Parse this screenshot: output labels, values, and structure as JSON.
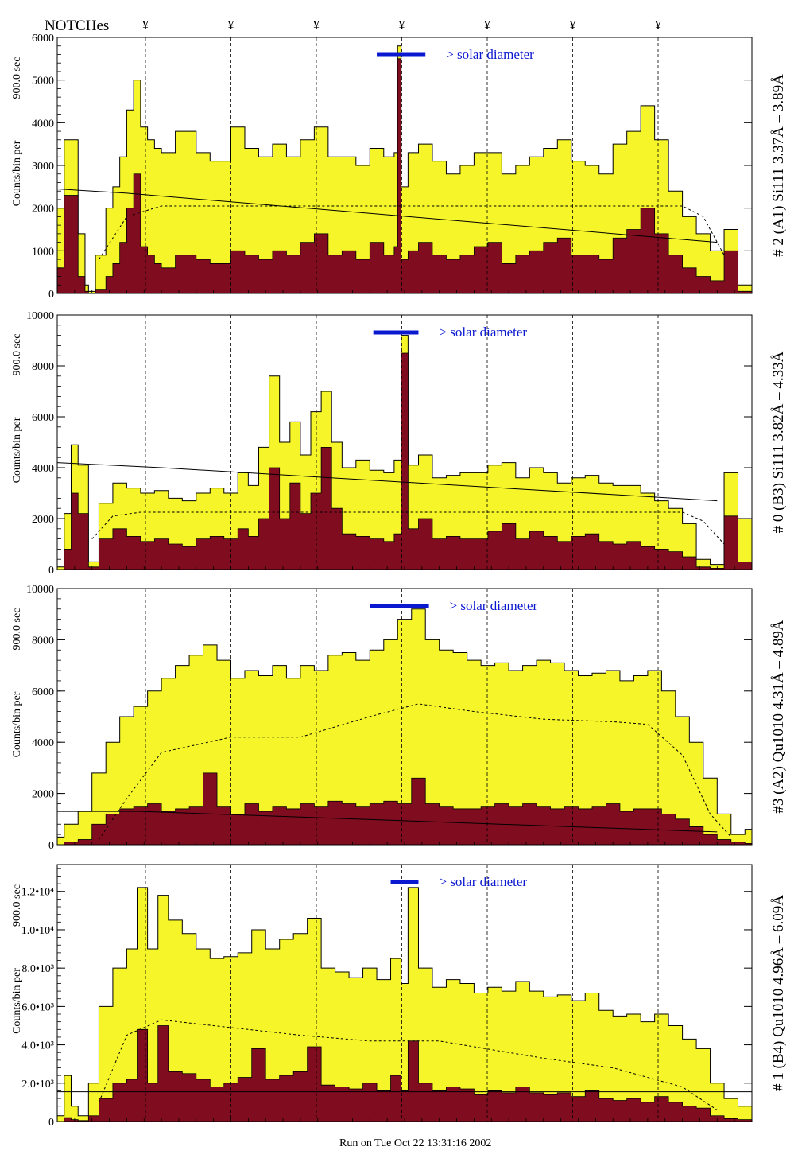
{
  "header": {
    "notches_label": "NOTCHes",
    "notch_marker": "¥",
    "notch_positions": [
      1.27,
      2.5,
      3.73,
      4.96,
      6.19,
      7.42,
      8.65
    ]
  },
  "footer": {
    "run_label": "Run on Tue Oct 22 13:31:16 2002"
  },
  "colors": {
    "fill_total": "#f5f52a",
    "fill_sub": "#800c20",
    "solar_bar": "#0a18d0",
    "solar_text": "#0a18d0",
    "axis": "#000000"
  },
  "chart_data": [
    {
      "type": "area",
      "title": "# 2 (A1) Si111  3.37Å – 3.89Å",
      "ylabel": "Counts/bin per",
      "ylabel2": "900.0 sec",
      "solar_label": "> solar diameter",
      "ylim": [
        0,
        6000
      ],
      "yticks": [
        0,
        1000,
        2000,
        3000,
        4000,
        5000,
        6000
      ],
      "ytick_labels": [
        "0",
        "1000",
        "2000",
        "3000",
        "4000",
        "5000",
        "6000"
      ],
      "xlim": [
        0,
        10
      ],
      "x": [
        0,
        0.1,
        0.3,
        0.4,
        0.45,
        0.55,
        0.7,
        0.8,
        0.9,
        1.0,
        1.1,
        1.2,
        1.3,
        1.4,
        1.5,
        1.7,
        2.0,
        2.2,
        2.5,
        2.7,
        2.9,
        3.1,
        3.3,
        3.5,
        3.7,
        3.9,
        4.1,
        4.3,
        4.5,
        4.7,
        4.85,
        4.9,
        4.95,
        5.05,
        5.2,
        5.4,
        5.6,
        5.8,
        6.0,
        6.2,
        6.4,
        6.6,
        6.8,
        7.0,
        7.2,
        7.4,
        7.6,
        7.8,
        8.0,
        8.2,
        8.4,
        8.6,
        8.8,
        9.0,
        9.2,
        9.4,
        9.6,
        9.8,
        10
      ],
      "total": [
        2000,
        3600,
        1400,
        200,
        50,
        900,
        2000,
        2500,
        3200,
        4300,
        5000,
        3900,
        3600,
        3400,
        3300,
        3800,
        3300,
        3100,
        3900,
        3400,
        3200,
        3500,
        3200,
        3600,
        3900,
        3200,
        3200,
        3000,
        3400,
        3200,
        3300,
        5800,
        2500,
        3300,
        3500,
        3100,
        2800,
        3000,
        3300,
        3300,
        2800,
        3000,
        3200,
        3400,
        3600,
        3100,
        3000,
        2800,
        3500,
        3800,
        4400,
        3600,
        2400,
        1800,
        1400,
        1000,
        1500,
        200,
        0
      ],
      "sub": [
        600,
        2300,
        400,
        50,
        0,
        100,
        400,
        700,
        1200,
        2000,
        2800,
        1100,
        900,
        700,
        600,
        900,
        800,
        700,
        1000,
        900,
        800,
        1000,
        900,
        1200,
        1400,
        900,
        1000,
        800,
        1200,
        900,
        1100,
        5500,
        800,
        1000,
        1200,
        900,
        800,
        900,
        1100,
        1200,
        700,
        900,
        1000,
        1200,
        1300,
        900,
        900,
        800,
        1300,
        1500,
        2000,
        1400,
        900,
        600,
        400,
        300,
        1000,
        50,
        0
      ],
      "mean_curve": [
        [
          0.6,
          800
        ],
        [
          1.0,
          1800
        ],
        [
          1.5,
          2050
        ],
        [
          9.0,
          2050
        ],
        [
          9.3,
          1800
        ],
        [
          9.6,
          900
        ]
      ],
      "line_fit": [
        [
          0,
          2450
        ],
        [
          1.0,
          2350
        ],
        [
          9.5,
          1200
        ]
      ],
      "solar_bar": [
        4.6,
        5.3
      ]
    },
    {
      "type": "area",
      "title": "# 0 (B3) Si111  3.82Å – 4.33Å",
      "ylabel": "Counts/bin per",
      "ylabel2": "900.0 sec",
      "solar_label": "> solar diameter",
      "ylim": [
        0,
        10000
      ],
      "yticks": [
        0,
        2000,
        4000,
        6000,
        8000,
        10000
      ],
      "ytick_labels": [
        "0",
        "2000",
        "4000",
        "6000",
        "8000",
        "10000"
      ],
      "xlim": [
        0,
        10
      ],
      "x": [
        0,
        0.1,
        0.2,
        0.3,
        0.45,
        0.6,
        0.8,
        1.0,
        1.2,
        1.4,
        1.6,
        1.8,
        2.0,
        2.2,
        2.4,
        2.6,
        2.75,
        2.9,
        3.05,
        3.2,
        3.35,
        3.5,
        3.65,
        3.8,
        3.95,
        4.1,
        4.3,
        4.5,
        4.7,
        4.85,
        4.95,
        5.05,
        5.2,
        5.4,
        5.6,
        5.8,
        6.0,
        6.2,
        6.4,
        6.6,
        6.8,
        7.0,
        7.2,
        7.4,
        7.6,
        7.8,
        8.0,
        8.2,
        8.4,
        8.6,
        8.8,
        9.0,
        9.2,
        9.4,
        9.6,
        9.8,
        10
      ],
      "total": [
        100,
        2200,
        4900,
        4100,
        300,
        2600,
        3400,
        3200,
        3000,
        3100,
        2800,
        2700,
        3000,
        3200,
        3000,
        3800,
        3300,
        4800,
        7600,
        5000,
        5800,
        4500,
        6200,
        7000,
        5000,
        4000,
        4300,
        3900,
        3800,
        4300,
        9200,
        4100,
        4500,
        3600,
        3700,
        3800,
        3800,
        4100,
        4200,
        3600,
        4000,
        3800,
        3400,
        3600,
        3700,
        3400,
        3300,
        3300,
        3000,
        2700,
        2400,
        1800,
        400,
        200,
        3800,
        2000,
        0
      ],
      "sub": [
        0,
        800,
        3000,
        2200,
        100,
        1200,
        1600,
        1300,
        1100,
        1200,
        1000,
        900,
        1200,
        1300,
        1200,
        1600,
        1300,
        2000,
        4000,
        2000,
        3400,
        2200,
        3000,
        4800,
        2400,
        1400,
        1300,
        1200,
        1100,
        1400,
        8500,
        1600,
        2000,
        1200,
        1300,
        1200,
        1200,
        1500,
        1800,
        1200,
        1500,
        1300,
        1100,
        1300,
        1400,
        1100,
        1000,
        1100,
        900,
        800,
        700,
        500,
        100,
        50,
        2100,
        300,
        0
      ],
      "mean_curve": [
        [
          0.5,
          1200
        ],
        [
          0.8,
          2100
        ],
        [
          1.2,
          2250
        ],
        [
          9.0,
          2250
        ],
        [
          9.3,
          1900
        ],
        [
          9.6,
          1000
        ]
      ],
      "line_fit": [
        [
          0,
          4200
        ],
        [
          1.5,
          4000
        ],
        [
          9.5,
          2700
        ]
      ],
      "solar_bar": [
        4.55,
        5.2
      ]
    },
    {
      "type": "area",
      "title": "#3 (A2) Qu1010  4.31Å – 4.89Å",
      "ylabel": "Counts/bin per",
      "ylabel2": "900.0 sec",
      "solar_label": "> solar diameter",
      "ylim": [
        0,
        10000
      ],
      "yticks": [
        0,
        2000,
        4000,
        6000,
        8000,
        10000
      ],
      "ytick_labels": [
        "0",
        "2000",
        "4000",
        "6000",
        "8000",
        "10000"
      ],
      "xlim": [
        0,
        10
      ],
      "x": [
        0,
        0.1,
        0.3,
        0.5,
        0.7,
        0.9,
        1.1,
        1.3,
        1.5,
        1.7,
        1.9,
        2.1,
        2.3,
        2.5,
        2.7,
        2.9,
        3.1,
        3.3,
        3.5,
        3.7,
        3.9,
        4.1,
        4.3,
        4.5,
        4.7,
        4.9,
        5.1,
        5.3,
        5.5,
        5.7,
        5.9,
        6.1,
        6.3,
        6.5,
        6.7,
        6.9,
        7.1,
        7.3,
        7.5,
        7.7,
        7.9,
        8.1,
        8.3,
        8.5,
        8.7,
        8.9,
        9.1,
        9.3,
        9.5,
        9.7,
        9.9,
        10
      ],
      "total": [
        300,
        800,
        1300,
        2800,
        4000,
        5000,
        5400,
        6000,
        6500,
        7000,
        7400,
        7800,
        7200,
        6500,
        6800,
        6600,
        7000,
        6500,
        7000,
        6800,
        7400,
        7500,
        7200,
        7600,
        8000,
        8800,
        9200,
        8000,
        7600,
        7500,
        7200,
        7000,
        7100,
        6800,
        7000,
        7200,
        7100,
        6800,
        6600,
        6700,
        6800,
        6400,
        6600,
        6800,
        6000,
        5000,
        4000,
        2600,
        1200,
        400,
        600,
        0
      ],
      "sub": [
        0,
        100,
        200,
        800,
        1200,
        1400,
        1500,
        1600,
        1300,
        1400,
        1500,
        2800,
        1500,
        1200,
        1600,
        1300,
        1500,
        1400,
        1600,
        1500,
        1700,
        1600,
        1500,
        1600,
        1700,
        1600,
        2600,
        1600,
        1500,
        1400,
        1400,
        1500,
        1600,
        1500,
        1600,
        1500,
        1400,
        1500,
        1400,
        1500,
        1600,
        1300,
        1400,
        1400,
        1200,
        1000,
        700,
        400,
        200,
        100,
        50,
        0
      ],
      "mean_curve": [
        [
          0.6,
          200
        ],
        [
          1.0,
          1800
        ],
        [
          1.5,
          3600
        ],
        [
          2.5,
          4200
        ],
        [
          3.5,
          4200
        ],
        [
          4.5,
          5000
        ],
        [
          5.2,
          5500
        ],
        [
          6.0,
          5200
        ],
        [
          7.0,
          4900
        ],
        [
          8.0,
          4800
        ],
        [
          8.5,
          4700
        ],
        [
          9.0,
          3500
        ],
        [
          9.4,
          1200
        ],
        [
          9.7,
          300
        ]
      ],
      "line_fit": [
        [
          0,
          1300
        ],
        [
          1.2,
          1300
        ],
        [
          9.5,
          500
        ]
      ],
      "solar_bar": [
        4.5,
        5.35
      ]
    },
    {
      "type": "area",
      "title": "# 1 (B4) Qu1010 4.96Å – 6.09Å",
      "ylabel": "Counts/bin per",
      "ylabel2": "900.0 sec",
      "solar_label": "> solar diameter",
      "ylim": [
        0,
        13400
      ],
      "yticks": [
        0,
        2000,
        4000,
        6000,
        8000,
        10000,
        12000
      ],
      "ytick_labels": [
        "0",
        "2.0•10³",
        "4.0•10³",
        "6.0•10³",
        "8.0•10³",
        "1.0•10⁴",
        "1.2•10⁴"
      ],
      "xlim": [
        0,
        10
      ],
      "x": [
        0,
        0.1,
        0.2,
        0.3,
        0.45,
        0.6,
        0.8,
        1.0,
        1.15,
        1.3,
        1.45,
        1.6,
        1.8,
        2.0,
        2.2,
        2.4,
        2.6,
        2.8,
        3.0,
        3.2,
        3.4,
        3.6,
        3.8,
        4.0,
        4.2,
        4.4,
        4.6,
        4.8,
        4.95,
        5.05,
        5.2,
        5.4,
        5.6,
        5.8,
        6.0,
        6.2,
        6.4,
        6.6,
        6.8,
        7.0,
        7.2,
        7.4,
        7.6,
        7.8,
        8.0,
        8.2,
        8.4,
        8.6,
        8.8,
        9.0,
        9.2,
        9.4,
        9.6,
        9.8,
        10
      ],
      "total": [
        300,
        2400,
        800,
        300,
        2000,
        6000,
        8000,
        9000,
        12200,
        9000,
        11800,
        10500,
        9800,
        9000,
        8500,
        8600,
        8800,
        10000,
        9000,
        9500,
        9800,
        10600,
        8000,
        7800,
        7500,
        8000,
        7400,
        8500,
        7200,
        12200,
        8000,
        7000,
        7400,
        7200,
        6700,
        7000,
        6800,
        7300,
        6800,
        6500,
        6600,
        6300,
        6700,
        5800,
        5500,
        5600,
        5200,
        5600,
        5000,
        4300,
        3800,
        2000,
        1200,
        800,
        0
      ],
      "sub": [
        0,
        200,
        100,
        50,
        300,
        1200,
        2000,
        2200,
        4800,
        2000,
        5000,
        2600,
        2500,
        2200,
        1800,
        2000,
        2300,
        3800,
        2200,
        2400,
        2600,
        3900,
        1900,
        1800,
        1700,
        2000,
        1600,
        2400,
        1600,
        4200,
        2000,
        1600,
        1800,
        1700,
        1400,
        1600,
        1500,
        1800,
        1500,
        1400,
        1500,
        1300,
        1600,
        1200,
        1100,
        1200,
        1000,
        1300,
        1000,
        800,
        700,
        300,
        150,
        100,
        0
      ],
      "mean_curve": [
        [
          0.6,
          1000
        ],
        [
          1.0,
          4500
        ],
        [
          1.5,
          5300
        ],
        [
          2.5,
          4900
        ],
        [
          3.5,
          4500
        ],
        [
          4.5,
          4200
        ],
        [
          5.5,
          4200
        ],
        [
          7.0,
          3300
        ],
        [
          8.0,
          2800
        ],
        [
          9.0,
          1800
        ],
        [
          9.5,
          600
        ]
      ],
      "line_fit": [
        [
          0,
          1550
        ],
        [
          10,
          1550
        ]
      ],
      "solar_bar": [
        4.8,
        5.2
      ]
    }
  ]
}
